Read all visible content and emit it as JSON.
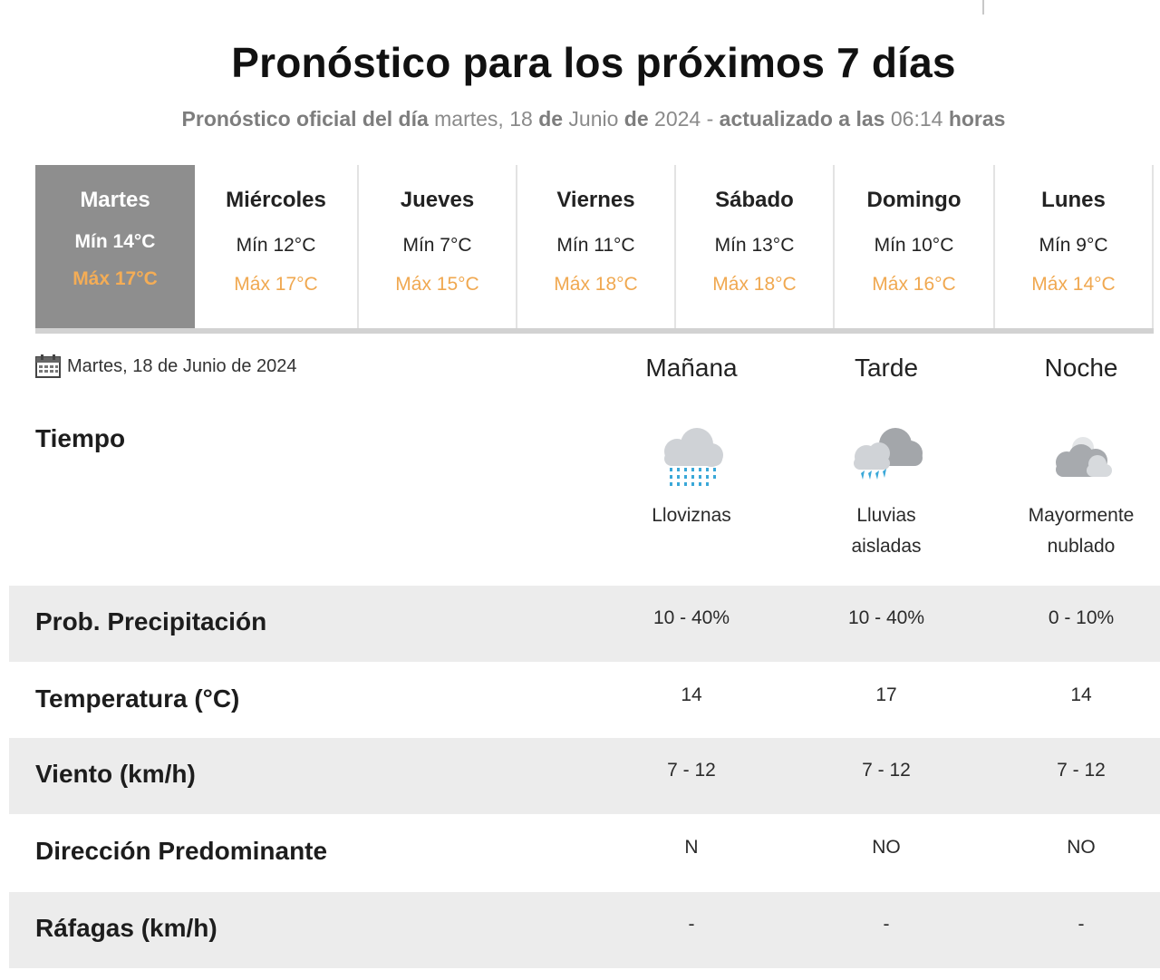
{
  "header": {
    "title": "Pronóstico para los próximos 7 días",
    "sub_prefix": "Pronóstico oficial del día",
    "sub_date_weekday": "martes, 18",
    "sub_de1": "de",
    "sub_month": "Junio",
    "sub_de2": "de",
    "sub_year": "2024",
    "sub_dash": "-",
    "sub_updated": "actualizado a las",
    "sub_time": "06:14",
    "sub_hours": "horas"
  },
  "days": [
    {
      "name": "Martes",
      "min": "Mín 14°C",
      "max": "Máx 17°C",
      "active": true
    },
    {
      "name": "Miércoles",
      "min": "Mín 12°C",
      "max": "Máx 17°C"
    },
    {
      "name": "Jueves",
      "min": "Mín 7°C",
      "max": "Máx 15°C"
    },
    {
      "name": "Viernes",
      "min": "Mín 11°C",
      "max": "Máx 18°C"
    },
    {
      "name": "Sábado",
      "min": "Mín 13°C",
      "max": "Máx 18°C"
    },
    {
      "name": "Domingo",
      "min": "Mín 10°C",
      "max": "Máx 16°C"
    },
    {
      "name": "Lunes",
      "min": "Mín 9°C",
      "max": "Máx 14°C"
    }
  ],
  "detail": {
    "date": "Martes, 18 de Junio de 2024",
    "date_icon": "calendar-icon",
    "periods": [
      "Mañana",
      "Tarde",
      "Noche"
    ],
    "tiempo_label": "Tiempo",
    "weather": [
      {
        "icon": "drizzle-icon",
        "desc_line1": "Lloviznas",
        "desc_line2": ""
      },
      {
        "icon": "isolated-rain-icon",
        "desc_line1": "Lluvias",
        "desc_line2": "aisladas"
      },
      {
        "icon": "mostly-cloudy-night-icon",
        "desc_line1": "Mayormente",
        "desc_line2": "nublado"
      }
    ],
    "rows": [
      {
        "label": "Prob. Precipitación",
        "values": [
          "10 - 40%",
          "10 - 40%",
          "0 - 10%"
        ]
      },
      {
        "label": "Temperatura (°C)",
        "values": [
          "14",
          "17",
          "14"
        ]
      },
      {
        "label": "Viento (km/h)",
        "values": [
          "7 - 12",
          "7 - 12",
          "7 - 12"
        ]
      },
      {
        "label": "Dirección Predominante",
        "values": [
          "N",
          "NO",
          "NO"
        ]
      },
      {
        "label": "Ráfagas (km/h)",
        "values": [
          "-",
          "-",
          "-"
        ]
      }
    ]
  },
  "colors": {
    "active_day_bg": "#8e8e8e",
    "max_temp": "#f0a850",
    "row_shade": "#ececec",
    "rain_drops": "#3aa8d8"
  }
}
